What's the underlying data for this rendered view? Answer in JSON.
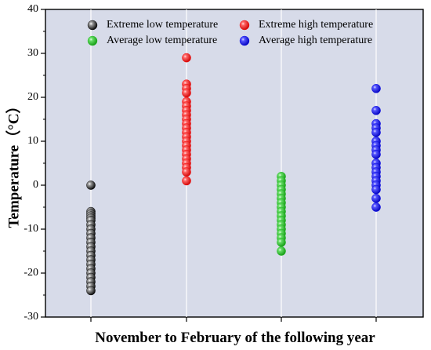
{
  "chart_data": {
    "type": "scatter",
    "title": "",
    "xlabel": "November to February of the following year",
    "ylabel": "Temperature（°C）",
    "ylim": [
      -30,
      40
    ],
    "yticks": [
      -30,
      -20,
      -10,
      0,
      10,
      20,
      30,
      40
    ],
    "grid": "vertical",
    "legend_position": "top",
    "background": "#d7dbe9",
    "series": [
      {
        "name": "Extreme low temperature",
        "color": "#000000",
        "x": 1,
        "values": [
          0,
          -6,
          -6.5,
          -7,
          -7.5,
          -8,
          -9,
          -10,
          -11,
          -12,
          -13,
          -14,
          -15,
          -16,
          -17,
          -18,
          -19,
          -20,
          -21,
          -22,
          -23,
          -24
        ]
      },
      {
        "name": "Extreme high temperature",
        "color": "#ff0000",
        "x": 2,
        "values": [
          29,
          23,
          22,
          21,
          19,
          18,
          17,
          16,
          15,
          14,
          13,
          12,
          11,
          10,
          9,
          8,
          7,
          6,
          5,
          4,
          3,
          1
        ]
      },
      {
        "name": "Average low temperature",
        "color": "#22bb22",
        "x": 3,
        "values": [
          2,
          1,
          0,
          -1,
          -2,
          -3,
          -4,
          -5,
          -6,
          -7,
          -8,
          -9,
          -10,
          -11,
          -12,
          -13,
          -15
        ]
      },
      {
        "name": "Average high temperature",
        "color": "#0000ee",
        "x": 4,
        "values": [
          22,
          17,
          14,
          13,
          12,
          10,
          9,
          8,
          7,
          5,
          4,
          3,
          2,
          1,
          0,
          -1,
          -3,
          -5
        ]
      }
    ]
  }
}
